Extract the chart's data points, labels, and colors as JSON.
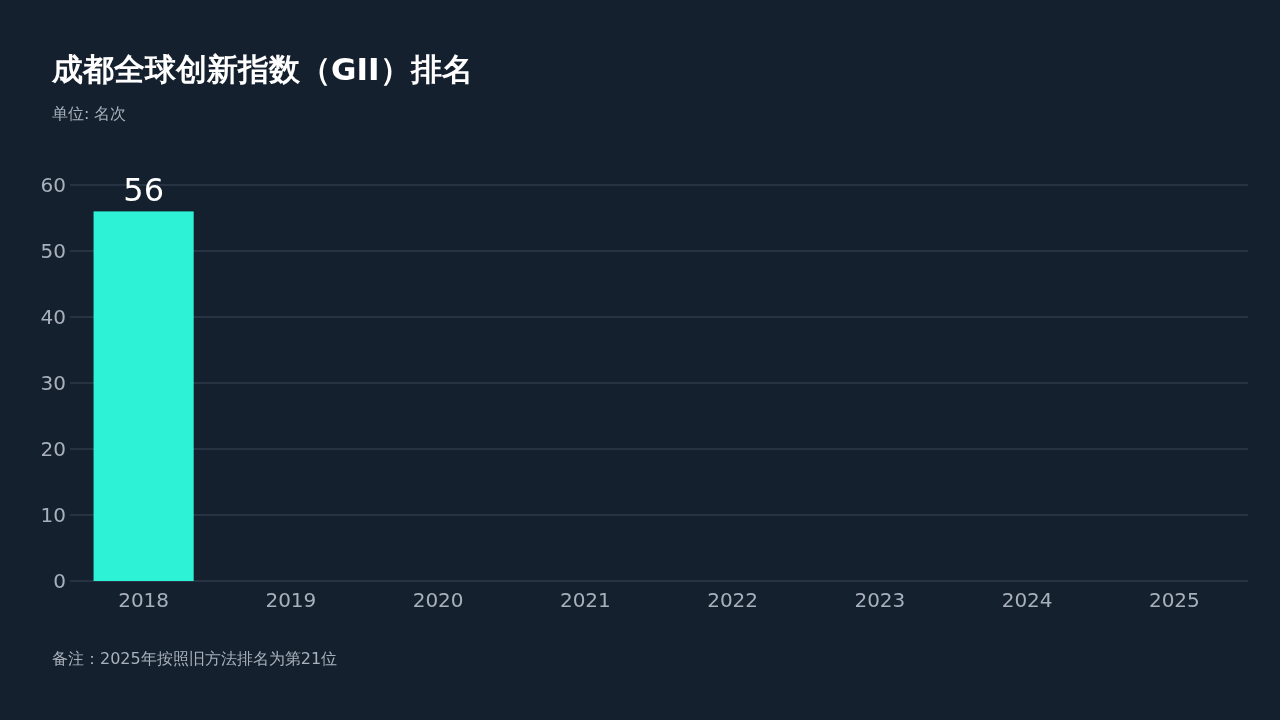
{
  "chart_data": {
    "type": "bar",
    "title": "成都全球创新指数（GII）排名",
    "subtitle": "单位: 名次",
    "categories": [
      "2018",
      "2019",
      "2020",
      "2021",
      "2022",
      "2023",
      "2024",
      "2025"
    ],
    "values": [
      56,
      null,
      null,
      null,
      null,
      null,
      null,
      null
    ],
    "color": "#2ef2d6",
    "data_labels": true,
    "grid": "y",
    "ylim": [
      0,
      60
    ],
    "yticks": [
      0,
      10,
      20,
      30,
      40,
      50,
      60
    ],
    "annotations": [
      "备注：2025年按照旧方法排名为第21位"
    ]
  }
}
